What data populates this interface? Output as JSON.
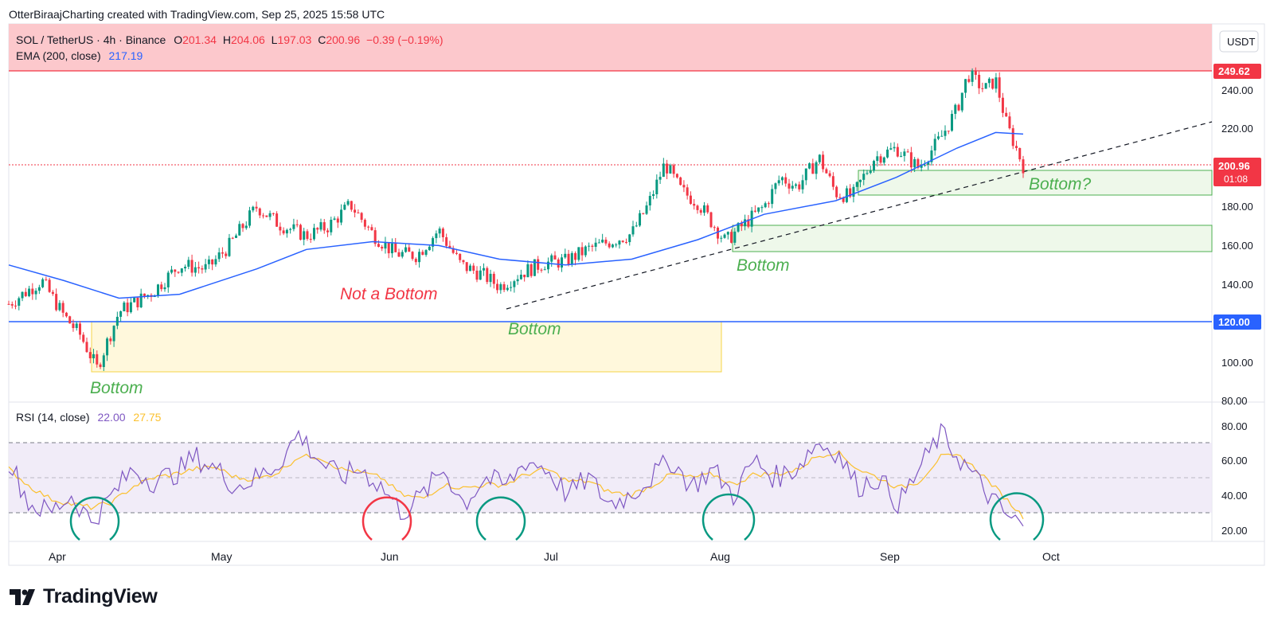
{
  "header": {
    "caption": "OtterBiraajCharting created with TradingView.com, Sep 25, 2025 15:58 UTC"
  },
  "legend": {
    "symbol": "SOL / TetherUS · 4h · Binance",
    "o_label": "O",
    "o_value": "201.34",
    "h_label": "H",
    "h_value": "204.06",
    "l_label": "L",
    "l_value": "197.03",
    "c_label": "C",
    "c_value": "200.96",
    "change": "−0.39 (−0.19%)",
    "ema_label": "EMA (200, close)",
    "ema_value": "217.19",
    "rsi_label": "RSI (14, close)",
    "rsi_value": "22.00",
    "rsi_ma_value": "27.75"
  },
  "currency_button": "USDT",
  "footer": {
    "brand": "TradingView"
  },
  "colors": {
    "up": "#089981",
    "down": "#f23645",
    "ema": "#2962ff",
    "rsi": "#7e57c2",
    "rsi_ma": "#fbc02d",
    "red_zone": "#fcc8cc",
    "yellow_zone": "#fff8dc",
    "green_zone": "#eef8ea",
    "annotation_green": "#4caf50",
    "annotation_red": "#f23645",
    "circle_green": "#089981",
    "circle_red": "#f23645"
  },
  "price_badges": {
    "resistance": "249.62",
    "last": "200.96",
    "countdown": "01:08",
    "support": "120.00"
  },
  "annotations": {
    "bottom_april": "Bottom",
    "not_a_bottom": "Not a Bottom",
    "bottom_june": "Bottom",
    "bottom_august": "Bottom",
    "bottom_question": "Bottom?"
  },
  "chart_data": [
    {
      "type": "candlestick",
      "title": "SOL / TetherUS · 4h · Binance",
      "x_tick_labels": [
        "Apr",
        "May",
        "Jun",
        "Jul",
        "Aug",
        "Sep",
        "Oct"
      ],
      "y_tick_labels": [
        "240.00",
        "220.00",
        "200.00",
        "180.00",
        "160.00",
        "140.00",
        "120.00",
        "100.00",
        "80.00"
      ],
      "ylim": [
        80,
        250
      ],
      "grid": false,
      "series": [
        {
          "name": "SOL / TetherUS",
          "x": [
            "2025-03-25",
            "2025-03-31",
            "2025-04-04",
            "2025-04-07",
            "2025-04-10",
            "2025-04-14",
            "2025-04-20",
            "2025-04-25",
            "2025-04-30",
            "2025-05-04",
            "2025-05-09",
            "2025-05-13",
            "2025-05-18",
            "2025-05-22",
            "2025-05-26",
            "2025-05-30",
            "2025-06-03",
            "2025-06-07",
            "2025-06-11",
            "2025-06-15",
            "2025-06-19",
            "2025-06-22",
            "2025-06-26",
            "2025-06-30",
            "2025-07-04",
            "2025-07-08",
            "2025-07-12",
            "2025-07-16",
            "2025-07-19",
            "2025-07-22",
            "2025-07-25",
            "2025-07-28",
            "2025-08-02",
            "2025-08-05",
            "2025-08-09",
            "2025-08-12",
            "2025-08-15",
            "2025-08-19",
            "2025-08-22",
            "2025-08-25",
            "2025-08-29",
            "2025-09-02",
            "2025-09-06",
            "2025-09-10",
            "2025-09-13",
            "2025-09-15",
            "2025-09-18",
            "2025-09-20",
            "2025-09-22",
            "2025-09-25"
          ],
          "values": [
            130,
            142,
            124,
            114,
            97,
            126,
            136,
            150,
            148,
            160,
            180,
            171,
            165,
            170,
            181,
            166,
            156,
            155,
            168,
            150,
            145,
            139,
            146,
            151,
            152,
            158,
            162,
            166,
            181,
            202,
            188,
            182,
            162,
            170,
            180,
            195,
            190,
            205,
            187,
            185,
            205,
            210,
            200,
            215,
            230,
            248,
            240,
            245,
            222,
            201
          ],
          "value_kind": "close_approx"
        },
        {
          "name": "EMA (200, close)",
          "x": [
            "2025-03-25",
            "2025-04-04",
            "2025-04-14",
            "2025-04-25",
            "2025-05-09",
            "2025-05-18",
            "2025-05-30",
            "2025-06-11",
            "2025-06-22",
            "2025-07-04",
            "2025-07-16",
            "2025-07-28",
            "2025-08-09",
            "2025-08-22",
            "2025-09-02",
            "2025-09-13",
            "2025-09-20",
            "2025-09-25"
          ],
          "values": [
            150,
            142,
            133,
            135,
            148,
            158,
            162,
            160,
            153,
            150,
            153,
            163,
            176,
            183,
            195,
            210,
            218,
            217.19
          ]
        }
      ],
      "levels": {
        "resistance": 249.62,
        "support": 120.0,
        "last_price": 200.96
      },
      "zones": [
        {
          "name": "Bottom zone Apr–Aug",
          "from": 95,
          "to": 120
        },
        {
          "name": "Bottom zone Aug",
          "from": 156,
          "to": 170
        },
        {
          "name": "Bottom? zone",
          "from": 186,
          "to": 199
        }
      ]
    },
    {
      "type": "line",
      "title": "RSI (14, close)",
      "y_tick_labels": [
        "80.00",
        "60.00",
        "40.00",
        "20.00"
      ],
      "ylim": [
        15,
        85
      ],
      "guides": [
        70,
        50,
        30
      ],
      "series": [
        {
          "name": "RSI",
          "values": [
            60,
            35,
            30,
            40,
            25,
            40,
            55,
            48,
            52,
            62,
            55,
            45,
            50,
            58,
            75,
            60,
            50,
            55,
            45,
            30,
            40,
            55,
            35,
            50,
            45,
            60,
            55,
            40,
            50,
            35,
            40,
            50,
            60,
            45,
            55,
            40,
            60,
            50,
            55,
            70,
            65,
            45,
            50,
            35,
            55,
            75,
            60,
            45,
            30,
            22
          ]
        },
        {
          "name": "RSI MA",
          "values": [
            55,
            45,
            38,
            35,
            33,
            36,
            45,
            50,
            52,
            55,
            56,
            50,
            49,
            53,
            62,
            62,
            55,
            53,
            50,
            40,
            38,
            46,
            44,
            46,
            46,
            52,
            55,
            48,
            48,
            42,
            40,
            45,
            52,
            50,
            52,
            46,
            52,
            52,
            54,
            62,
            65,
            55,
            50,
            44,
            48,
            62,
            62,
            52,
            40,
            27.75
          ]
        }
      ]
    }
  ]
}
